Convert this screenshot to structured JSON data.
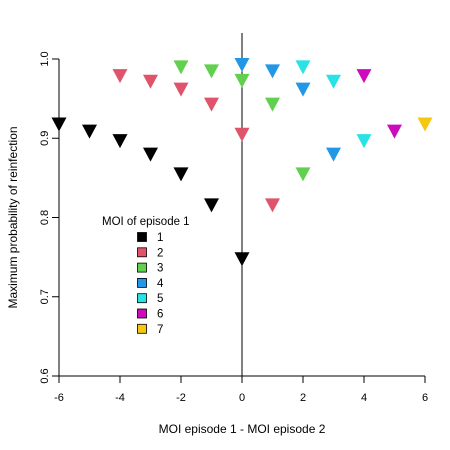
{
  "chart_data": {
    "type": "scatter",
    "xlabel": "MOI episode 1 - MOI episode 2",
    "ylabel": "Maximum probability of reinfection",
    "xlim": [
      -6,
      6
    ],
    "ylim": [
      0.6,
      1.0
    ],
    "x_ticks": [
      -6,
      -4,
      -2,
      0,
      2,
      4,
      6
    ],
    "y_ticks": [
      0.6,
      0.7,
      0.8,
      0.9,
      1.0
    ],
    "x_tick_labels": [
      "-6",
      "-4",
      "-2",
      "0",
      "2",
      "4",
      "6"
    ],
    "y_tick_labels": [
      "0.6",
      "0.7",
      "0.8",
      "0.9",
      "1.0"
    ],
    "vertical_reference_line_x": 0,
    "marker": "filled-down-triangle",
    "legend": {
      "title": "MOI of episode 1",
      "placement": "center-left",
      "entries": [
        "1",
        "2",
        "3",
        "4",
        "5",
        "6",
        "7"
      ]
    },
    "series": [
      {
        "name": "1",
        "color": "#000000",
        "points": [
          [
            -6,
            0.918
          ],
          [
            -5,
            0.909
          ],
          [
            -4,
            0.897
          ],
          [
            -3,
            0.88
          ],
          [
            -2,
            0.855
          ],
          [
            -1,
            0.816
          ],
          [
            0,
            0.748
          ]
        ]
      },
      {
        "name": "2",
        "color": "#DF536B",
        "points": [
          [
            -4,
            0.979
          ],
          [
            -3,
            0.972
          ],
          [
            -2,
            0.962
          ],
          [
            -1,
            0.943
          ],
          [
            0,
            0.905
          ],
          [
            1,
            0.816
          ]
        ]
      },
      {
        "name": "3",
        "color": "#61D04F",
        "points": [
          [
            -2,
            0.99
          ],
          [
            -1,
            0.985
          ],
          [
            0,
            0.973
          ],
          [
            1,
            0.943
          ],
          [
            2,
            0.855
          ]
        ]
      },
      {
        "name": "4",
        "color": "#2297E6",
        "points": [
          [
            0,
            0.993
          ],
          [
            1,
            0.985
          ],
          [
            2,
            0.962
          ],
          [
            3,
            0.88
          ]
        ]
      },
      {
        "name": "5",
        "color": "#28E2E5",
        "points": [
          [
            2,
            0.99
          ],
          [
            3,
            0.972
          ],
          [
            4,
            0.897
          ]
        ]
      },
      {
        "name": "6",
        "color": "#CD0BBC",
        "points": [
          [
            4,
            0.979
          ],
          [
            5,
            0.909
          ]
        ]
      },
      {
        "name": "7",
        "color": "#F5C710",
        "points": [
          [
            6,
            0.918
          ]
        ]
      }
    ]
  }
}
